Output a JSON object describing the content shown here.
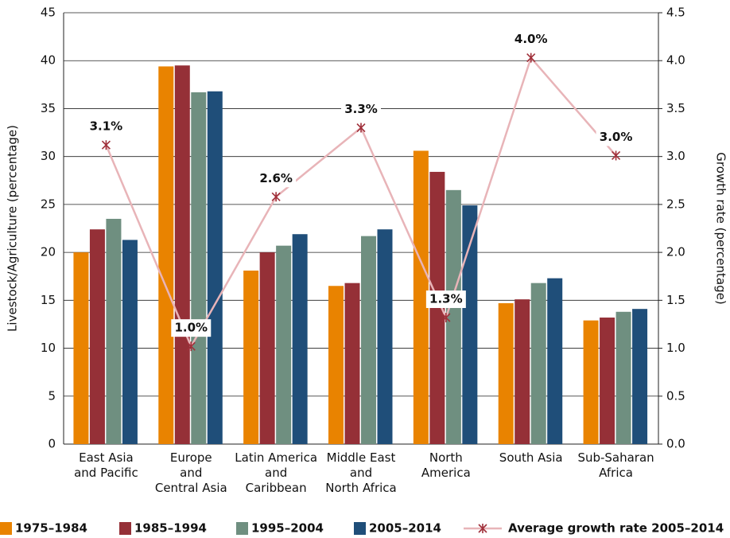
{
  "chart_data": {
    "type": "bar",
    "categories": [
      "East Asia\nand Pacific",
      "Europe\nand\nCentral Asia",
      "Latin America\nand\nCaribbean",
      "Middle East\nand\nNorth Africa",
      "North\nAmerica",
      "South Asia",
      "Sub-Saharan\nAfrica"
    ],
    "ylabel": "Livestock/Agriculture (percentage)",
    "y2label": "Growth rate (percentage)",
    "series": [
      {
        "name": "1975–1984",
        "color": "#e98300",
        "values": [
          20.0,
          39.4,
          18.1,
          16.5,
          30.6,
          14.7,
          12.9
        ]
      },
      {
        "name": "1985–1994",
        "color": "#953037",
        "values": [
          22.4,
          39.5,
          20.0,
          16.8,
          28.4,
          15.1,
          13.2
        ]
      },
      {
        "name": "1995–2004",
        "color": "#6f8f80",
        "values": [
          23.5,
          36.7,
          20.7,
          21.7,
          26.5,
          16.8,
          13.8
        ]
      },
      {
        "name": "2005–2014",
        "color": "#1f4e79",
        "values": [
          21.3,
          36.8,
          21.9,
          22.4,
          24.9,
          17.3,
          14.1
        ]
      },
      {
        "name": "Average growth rate 2005–2014",
        "type": "line",
        "axis": "y2",
        "color": "#e8b4b8",
        "marker_color": "#a0303a",
        "values": [
          3.12,
          1.02,
          2.58,
          3.3,
          1.32,
          4.03,
          3.01
        ],
        "value_labels": [
          "3.1%",
          "1.0%",
          "2.6%",
          "3.3%",
          "1.3%",
          "4.0%",
          "3.0%"
        ]
      }
    ],
    "ylim": [
      0,
      45
    ],
    "yticks": [
      0,
      5,
      10,
      15,
      20,
      25,
      30,
      35,
      40,
      45
    ],
    "y2lim": [
      0,
      4.5
    ],
    "y2ticks": [
      {
        "value": 0,
        "label": "0.0"
      },
      0.5,
      {
        "value": 1,
        "label": "1.0"
      },
      1.5,
      {
        "value": 2,
        "label": "2.0"
      },
      2.5,
      {
        "value": 3,
        "label": "3.0"
      },
      3.5,
      {
        "value": 4,
        "label": "4.0"
      },
      4.5
    ],
    "grid": true,
    "legend": "bottom"
  }
}
